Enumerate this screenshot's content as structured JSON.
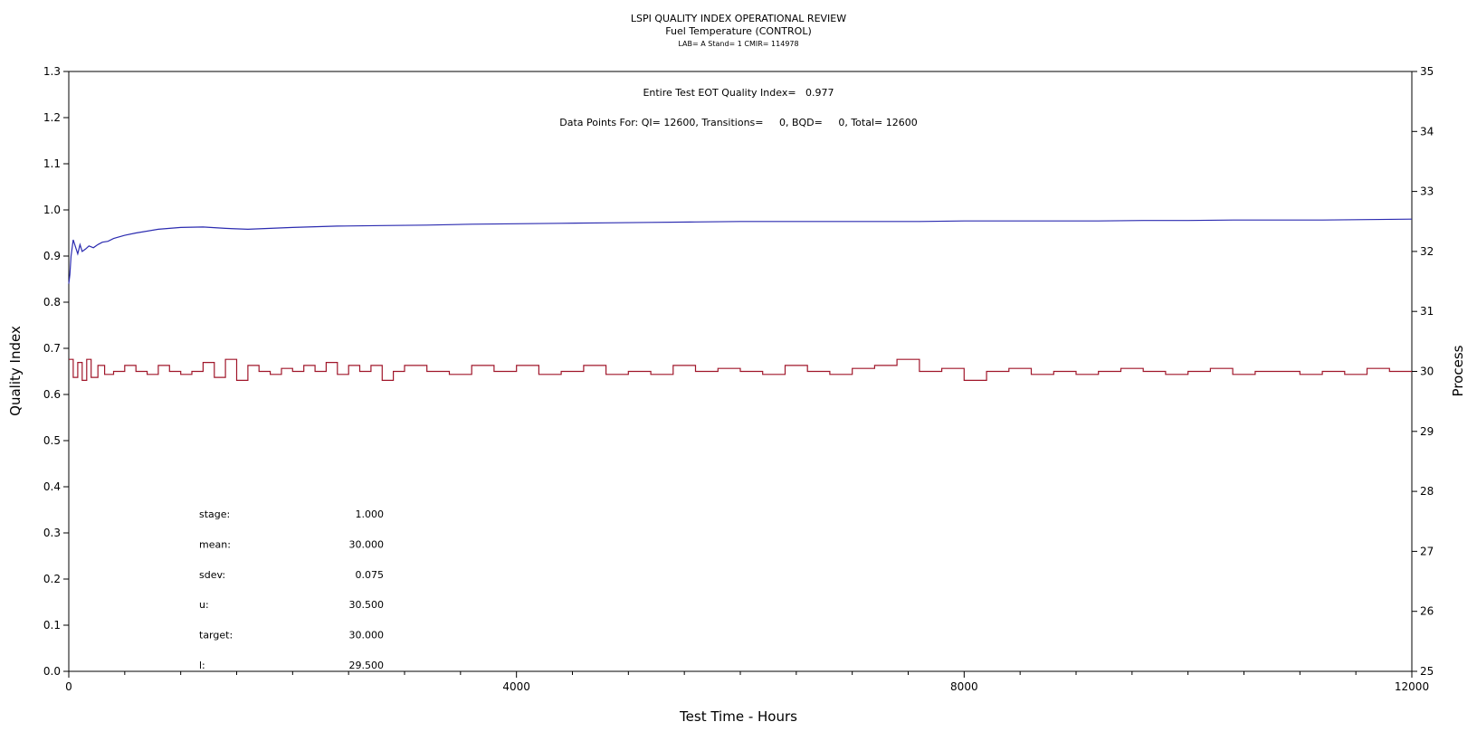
{
  "header": {
    "title": "LSPI QUALITY INDEX OPERATIONAL REVIEW",
    "subtitle": "Fuel Temperature (CONTROL)",
    "meta": "LAB= A Stand= 1 CMIR= 114978"
  },
  "annotations": {
    "qi_line": "Entire Test EOT Quality Index=   0.977",
    "points_line": "Data Points For: QI= 12600, Transitions=     0, BQD=     0, Total= 12600"
  },
  "stats": [
    {
      "label": "stage:",
      "value": "1.000"
    },
    {
      "label": "mean:",
      "value": "30.000"
    },
    {
      "label": "sdev:",
      "value": "0.075"
    },
    {
      "label": "u:",
      "value": "30.500"
    },
    {
      "label": "target:",
      "value": "30.000"
    },
    {
      "label": "l:",
      "value": "29.500"
    }
  ],
  "chart_data": {
    "type": "line",
    "title": "LSPI QUALITY INDEX OPERATIONAL REVIEW",
    "xlabel": "Test Time - Hours",
    "ylabel": "Quality Index",
    "y2label": "Process",
    "xlim": [
      0,
      12000
    ],
    "ylim": [
      0.0,
      1.3
    ],
    "y2lim": [
      25,
      35
    ],
    "x_ticks": [
      "0",
      "4000",
      "8000",
      "12000"
    ],
    "y_ticks": [
      "0.0",
      "0.1",
      "0.2",
      "0.3",
      "0.4",
      "0.5",
      "0.6",
      "0.7",
      "0.8",
      "0.9",
      "1.0",
      "1.1",
      "1.2",
      "1.3"
    ],
    "y2_ticks": [
      "25",
      "26",
      "27",
      "28",
      "29",
      "30",
      "31",
      "32",
      "33",
      "34",
      "35"
    ],
    "series": [
      {
        "axis": "left",
        "color": "#2b2bb0",
        "x": [
          0,
          10,
          20,
          40,
          60,
          80,
          100,
          120,
          150,
          180,
          220,
          260,
          300,
          350,
          400,
          500,
          600,
          800,
          1000,
          1200,
          1400,
          1600,
          1800,
          2000,
          2400,
          2800,
          3200,
          3600,
          4000,
          4400,
          4800,
          5200,
          5600,
          6000,
          6400,
          6800,
          7200,
          7600,
          8000,
          8400,
          8800,
          9200,
          9600,
          10000,
          10400,
          10800,
          11200,
          11600,
          12000
        ],
        "values": [
          0.84,
          0.86,
          0.9,
          0.935,
          0.92,
          0.905,
          0.925,
          0.91,
          0.915,
          0.922,
          0.918,
          0.925,
          0.93,
          0.932,
          0.938,
          0.945,
          0.95,
          0.958,
          0.962,
          0.963,
          0.96,
          0.958,
          0.96,
          0.962,
          0.965,
          0.966,
          0.967,
          0.969,
          0.97,
          0.971,
          0.972,
          0.973,
          0.974,
          0.975,
          0.975,
          0.975,
          0.975,
          0.975,
          0.976,
          0.976,
          0.976,
          0.976,
          0.977,
          0.977,
          0.978,
          0.978,
          0.978,
          0.979,
          0.98
        ]
      },
      {
        "axis": "right",
        "color": "#a0162a",
        "x": [
          0,
          40,
          80,
          120,
          160,
          200,
          260,
          320,
          400,
          500,
          600,
          700,
          800,
          900,
          1000,
          1100,
          1200,
          1300,
          1400,
          1500,
          1600,
          1700,
          1800,
          1900,
          2000,
          2100,
          2200,
          2300,
          2400,
          2500,
          2600,
          2700,
          2800,
          2900,
          3000,
          3200,
          3400,
          3600,
          3800,
          4000,
          4200,
          4400,
          4600,
          4800,
          5000,
          5200,
          5400,
          5600,
          5800,
          6000,
          6200,
          6400,
          6600,
          6800,
          7000,
          7200,
          7400,
          7600,
          7800,
          8000,
          8200,
          8400,
          8600,
          8800,
          9000,
          9200,
          9400,
          9600,
          9800,
          10000,
          10200,
          10400,
          10600,
          10800,
          11000,
          11200,
          11400,
          11600,
          11800,
          12000
        ],
        "values": [
          30.2,
          29.9,
          30.15,
          29.85,
          30.2,
          29.9,
          30.1,
          29.95,
          30.0,
          30.1,
          30.0,
          29.95,
          30.1,
          30.0,
          29.95,
          30.0,
          30.15,
          29.9,
          30.2,
          29.85,
          30.1,
          30.0,
          29.95,
          30.05,
          30.0,
          30.1,
          30.0,
          30.15,
          29.95,
          30.1,
          30.0,
          30.1,
          29.85,
          30.0,
          30.1,
          30.0,
          29.95,
          30.1,
          30.0,
          30.1,
          29.95,
          30.0,
          30.1,
          29.95,
          30.0,
          29.95,
          30.1,
          30.0,
          30.05,
          30.0,
          29.95,
          30.1,
          30.0,
          29.95,
          30.05,
          30.1,
          30.2,
          30.0,
          30.05,
          29.85,
          30.0,
          30.05,
          29.95,
          30.0,
          29.95,
          30.0,
          30.05,
          30.0,
          29.95,
          30.0,
          30.05,
          29.95,
          30.0,
          30.0,
          29.95,
          30.0,
          29.95,
          30.05,
          30.0,
          30.0
        ]
      }
    ]
  }
}
